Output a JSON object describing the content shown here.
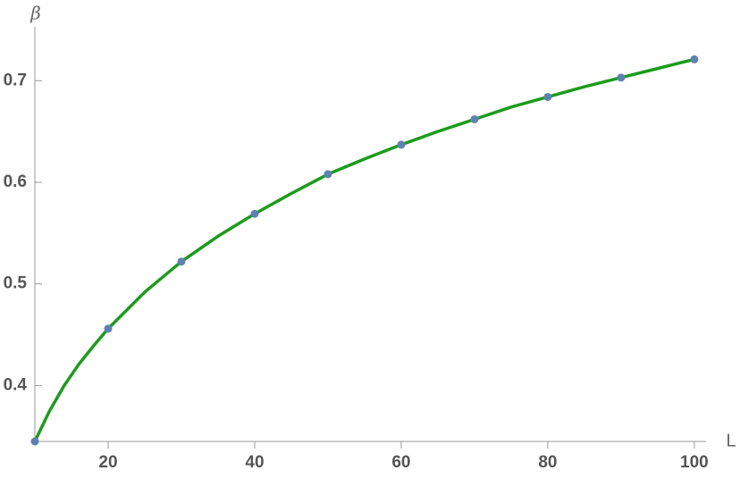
{
  "chart_data": {
    "type": "scatter",
    "x_label": "L",
    "y_label": "β",
    "xlim": [
      10,
      101.6
    ],
    "ylim": [
      0.345,
      0.753
    ],
    "xticks": [
      20,
      40,
      60,
      80,
      100
    ],
    "yticks": [
      0.4,
      0.5,
      0.6,
      0.7
    ],
    "axis_color": "#999999",
    "series": [
      {
        "mode": "line",
        "color": "#1a9e1a",
        "x": [
          10,
          12,
          14,
          16,
          18,
          20,
          25,
          30,
          35,
          40,
          45,
          50,
          55,
          60,
          65,
          70,
          75,
          80,
          85,
          90,
          95,
          100
        ],
        "values": [
          0.345,
          0.375,
          0.4,
          0.421,
          0.439,
          0.456,
          0.492,
          0.522,
          0.547,
          0.569,
          0.589,
          0.608,
          0.623,
          0.637,
          0.65,
          0.662,
          0.674,
          0.684,
          0.694,
          0.703,
          0.712,
          0.721
        ]
      },
      {
        "mode": "markers",
        "color": "#5e81b5",
        "x": [
          10,
          20,
          30,
          40,
          50,
          60,
          70,
          80,
          90,
          100
        ],
        "values": [
          0.345,
          0.456,
          0.522,
          0.569,
          0.608,
          0.637,
          0.662,
          0.684,
          0.703,
          0.721
        ]
      }
    ]
  }
}
